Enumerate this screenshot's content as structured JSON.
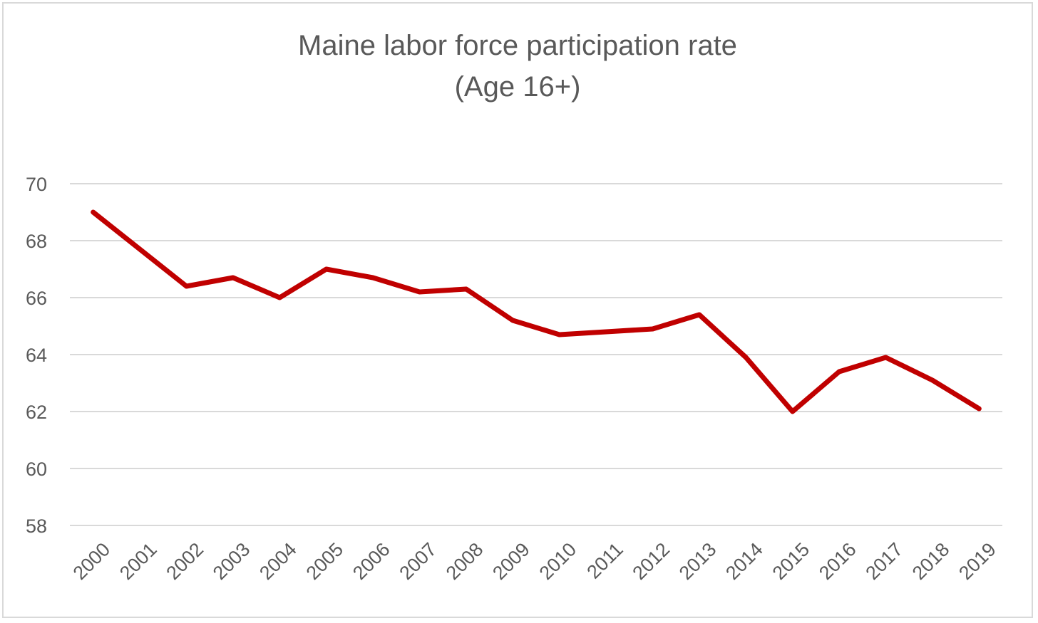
{
  "chart_data": {
    "type": "line",
    "title_lines": [
      "Maine labor force participation rate",
      "(Age 16+)"
    ],
    "xlabel": "",
    "ylabel": "",
    "categories": [
      "2000",
      "2001",
      "2002",
      "2003",
      "2004",
      "2005",
      "2006",
      "2007",
      "2008",
      "2009",
      "2010",
      "2011",
      "2012",
      "2013",
      "2014",
      "2015",
      "2016",
      "2017",
      "2018",
      "2019"
    ],
    "series": [
      {
        "values": [
          69.0,
          67.7,
          66.4,
          66.7,
          66.0,
          67.0,
          66.7,
          66.2,
          66.3,
          65.2,
          64.7,
          64.8,
          64.9,
          65.4,
          63.9,
          62.0,
          63.4,
          63.9,
          63.1,
          62.1
        ]
      }
    ],
    "ylim": [
      58,
      70
    ],
    "yticks": [
      "58",
      "60",
      "62",
      "64",
      "66",
      "68",
      "70"
    ],
    "grid": true,
    "legend": "none",
    "colors": {
      "series": "#c00000",
      "grid": "#d9d9d9",
      "text": "#595959"
    }
  }
}
